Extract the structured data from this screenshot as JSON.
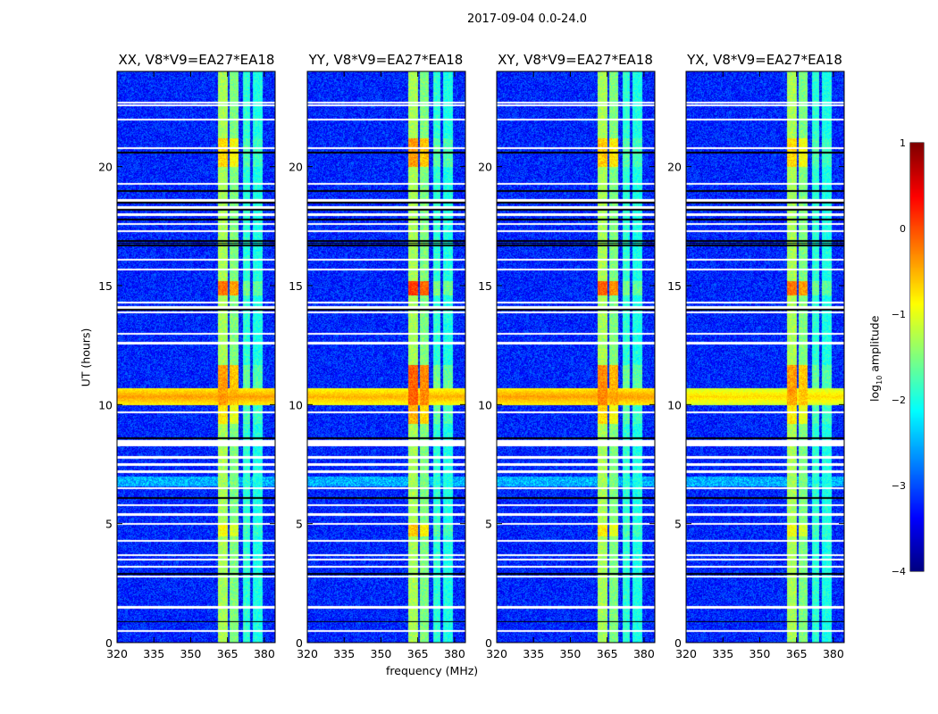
{
  "chart_data": {
    "type": "heatmap",
    "title": "2017-09-04 0.0-24.0",
    "xlabel": "frequency (MHz)",
    "ylabel": "UT (hours)",
    "xlim": [
      320,
      384.4
    ],
    "ylim": [
      0,
      24
    ],
    "xticks": [
      320,
      335,
      350,
      365,
      380
    ],
    "yticks": [
      0,
      5,
      10,
      15,
      20
    ],
    "panels": [
      {
        "title": "XX, V8*V9=EA27*EA18",
        "rfi_level": -0.4,
        "bright_boost": 0.0
      },
      {
        "title": "YY, V8*V9=EA27*EA18",
        "rfi_level": -0.5,
        "bright_boost": 0.3
      },
      {
        "title": "XY, V8*V9=EA27*EA18",
        "rfi_level": -0.4,
        "bright_boost": 0.1
      },
      {
        "title": "YX, V8*V9=EA27*EA18",
        "rfi_level": -0.7,
        "bright_boost": 0.0
      }
    ],
    "background_log10": -3.2,
    "freq_bands_MHz": [
      {
        "range": [
          361,
          365
        ],
        "log10": -1.3
      },
      {
        "range": [
          365.8,
          369.2
        ],
        "log10": -1.5
      },
      {
        "range": [
          371,
          374
        ],
        "log10": -1.9
      },
      {
        "range": [
          375,
          379
        ],
        "log10": -2.0
      }
    ],
    "bright_periods_h": [
      [
        10.0,
        11.7,
        0.9
      ],
      [
        14.6,
        15.2,
        1.1
      ],
      [
        20.0,
        21.2,
        0.6
      ],
      [
        4.5,
        5.0,
        0.4
      ],
      [
        9.2,
        10.0,
        0.5
      ]
    ],
    "rfi_band_h": [
      10.0,
      10.7
    ],
    "flagged_rows_white_h": [
      0.5,
      1.5,
      2.8,
      3.2,
      3.5,
      3.7,
      4.3,
      5.0,
      5.4,
      5.8,
      6.5,
      7.2,
      7.5,
      7.8,
      8.3,
      8.4,
      8.5,
      9.7,
      12.6,
      13.0,
      13.9,
      14.1,
      14.3,
      15.7,
      16.1,
      17.3,
      17.6,
      18.0,
      18.3,
      18.6,
      19.3,
      20.8,
      22.0,
      22.6,
      22.7
    ],
    "flagged_rows_black_h": [
      0.9,
      2.9,
      6.1,
      8.6,
      14.0,
      16.7,
      16.8,
      16.9,
      17.8,
      18.2,
      18.5,
      19.0,
      20.6
    ],
    "colorbar": {
      "label": "log10 amplitude",
      "label_base": "log",
      "label_sub": "10",
      "label_rest": " amplitude",
      "min": -4,
      "max": 1,
      "ticks": [
        1,
        0,
        -1,
        -2,
        -3,
        -4
      ],
      "tick_labels": [
        "1",
        "0",
        "−1",
        "−2",
        "−3",
        "−4"
      ],
      "colormap": "jet"
    }
  }
}
